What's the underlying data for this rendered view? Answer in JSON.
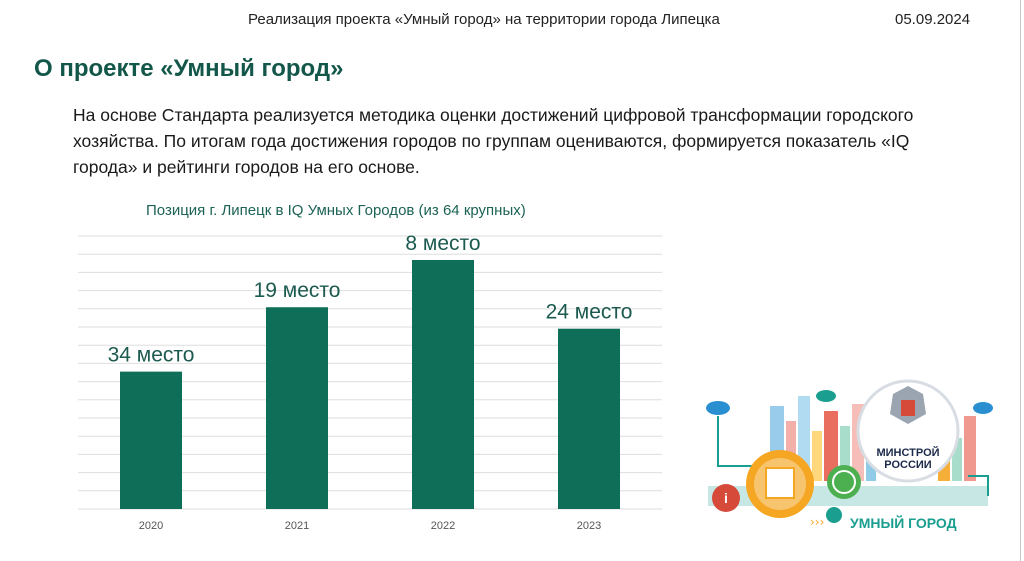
{
  "header": {
    "title": "Реализация проекта «Умный город» на территории города Липецка",
    "date": "05.09.2024"
  },
  "slide": {
    "title": "О проекте «Умный город»",
    "intro": "На основе Стандарта реализуется методика оценки достижений цифровой трансформации городского хозяйства. По итогам года достижения городов по группам оцениваются, формируется показатель «IQ города» и рейтинги городов на его основе."
  },
  "chart_data": {
    "type": "bar",
    "title": "Позиция г. Липецк в IQ Умных Городов (из 64 крупных)",
    "categories": [
      "2020",
      "2021",
      "2022",
      "2023"
    ],
    "values": [
      34,
      19,
      8,
      24
    ],
    "data_labels": [
      "34 место",
      "19 место",
      "8 место",
      "24 место"
    ],
    "bar_color": "#0f6e58",
    "grid": true
  },
  "illustration": {
    "badge_line1": "МИНСТРОЙ",
    "badge_line2": "РОССИИ",
    "brand": "УМНЫЙ ГОРОД",
    "colors": {
      "teal": "#1a9e8f",
      "orange": "#f5a623",
      "red": "#d64a3a",
      "blue": "#2a8fd1",
      "green": "#4caf50"
    }
  }
}
